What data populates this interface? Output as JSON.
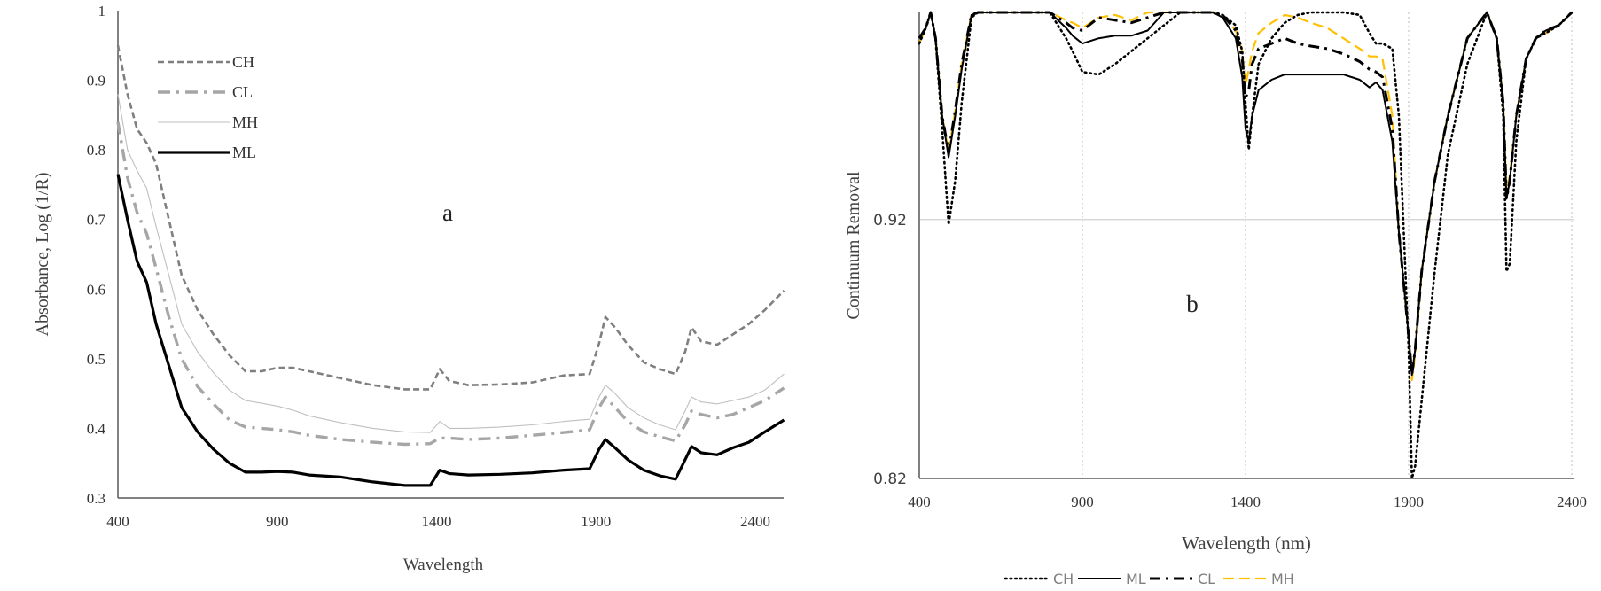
{
  "chart_data": [
    {
      "id": "a",
      "type": "line",
      "panel_label": "a",
      "title": "",
      "xlabel": "Wavelength",
      "ylabel": "Absorbance,  Log (1/R)",
      "xlim": [
        400,
        2490
      ],
      "ylim": [
        0.3,
        1.0
      ],
      "xticks": [
        400,
        900,
        1400,
        1900,
        2400
      ],
      "yticks": [
        0.3,
        0.4,
        0.5,
        0.6,
        0.7,
        0.8,
        0.9,
        1
      ],
      "ytick_labels": [
        "0.3",
        "0.4",
        "0.5",
        "0.6",
        "0.7",
        "0.8",
        "0.9",
        "1"
      ],
      "grid": false,
      "legend_position": "upper-left-inside",
      "legend": [
        "CH",
        "CL",
        "MH",
        "ML"
      ],
      "series": [
        {
          "name": "CH",
          "style": "dashed",
          "color": "#7f7f7f",
          "x": [
            400,
            430,
            460,
            490,
            520,
            560,
            600,
            650,
            700,
            750,
            800,
            850,
            900,
            950,
            1000,
            1100,
            1200,
            1300,
            1380,
            1410,
            1440,
            1500,
            1600,
            1700,
            1800,
            1880,
            1910,
            1930,
            1960,
            2000,
            2050,
            2100,
            2150,
            2180,
            2200,
            2230,
            2280,
            2330,
            2380,
            2430,
            2490
          ],
          "y": [
            0.95,
            0.88,
            0.83,
            0.81,
            0.78,
            0.7,
            0.62,
            0.57,
            0.535,
            0.505,
            0.482,
            0.482,
            0.487,
            0.487,
            0.482,
            0.472,
            0.462,
            0.456,
            0.456,
            0.485,
            0.468,
            0.462,
            0.463,
            0.466,
            0.476,
            0.478,
            0.522,
            0.56,
            0.545,
            0.52,
            0.495,
            0.485,
            0.478,
            0.51,
            0.545,
            0.525,
            0.52,
            0.535,
            0.55,
            0.57,
            0.598
          ]
        },
        {
          "name": "CL",
          "style": "dashdot",
          "color": "#a6a6a6",
          "x": [
            400,
            430,
            460,
            490,
            520,
            560,
            600,
            650,
            700,
            750,
            800,
            850,
            900,
            950,
            1000,
            1100,
            1200,
            1300,
            1380,
            1410,
            1440,
            1500,
            1600,
            1700,
            1800,
            1880,
            1910,
            1930,
            1960,
            2000,
            2050,
            2100,
            2150,
            2180,
            2200,
            2230,
            2280,
            2330,
            2380,
            2430,
            2490
          ],
          "y": [
            0.84,
            0.76,
            0.71,
            0.68,
            0.63,
            0.56,
            0.5,
            0.46,
            0.435,
            0.412,
            0.402,
            0.4,
            0.398,
            0.395,
            0.39,
            0.384,
            0.38,
            0.377,
            0.378,
            0.386,
            0.386,
            0.384,
            0.386,
            0.39,
            0.394,
            0.398,
            0.43,
            0.445,
            0.43,
            0.41,
            0.395,
            0.388,
            0.382,
            0.405,
            0.425,
            0.42,
            0.415,
            0.42,
            0.43,
            0.44,
            0.458
          ]
        },
        {
          "name": "MH",
          "style": "thin",
          "color": "#bfbfbf",
          "x": [
            400,
            430,
            460,
            490,
            520,
            560,
            600,
            650,
            700,
            750,
            800,
            850,
            900,
            950,
            1000,
            1100,
            1200,
            1300,
            1380,
            1410,
            1440,
            1500,
            1600,
            1700,
            1800,
            1880,
            1910,
            1930,
            1960,
            2000,
            2050,
            2100,
            2150,
            2180,
            2200,
            2230,
            2280,
            2330,
            2380,
            2430,
            2490
          ],
          "y": [
            0.88,
            0.8,
            0.77,
            0.745,
            0.69,
            0.62,
            0.55,
            0.51,
            0.48,
            0.455,
            0.44,
            0.436,
            0.432,
            0.426,
            0.418,
            0.408,
            0.4,
            0.395,
            0.394,
            0.41,
            0.4,
            0.4,
            0.402,
            0.405,
            0.41,
            0.413,
            0.445,
            0.462,
            0.45,
            0.43,
            0.415,
            0.405,
            0.398,
            0.425,
            0.445,
            0.438,
            0.435,
            0.44,
            0.445,
            0.455,
            0.478
          ]
        },
        {
          "name": "ML",
          "style": "solid-thick",
          "color": "#000000",
          "x": [
            400,
            430,
            460,
            490,
            520,
            560,
            600,
            650,
            700,
            750,
            800,
            850,
            900,
            950,
            1000,
            1100,
            1200,
            1300,
            1380,
            1410,
            1440,
            1500,
            1600,
            1700,
            1800,
            1880,
            1910,
            1930,
            1960,
            2000,
            2050,
            2100,
            2150,
            2180,
            2200,
            2230,
            2280,
            2330,
            2380,
            2430,
            2490
          ],
          "y": [
            0.765,
            0.7,
            0.64,
            0.61,
            0.55,
            0.49,
            0.43,
            0.395,
            0.37,
            0.35,
            0.337,
            0.337,
            0.338,
            0.337,
            0.333,
            0.33,
            0.323,
            0.318,
            0.318,
            0.34,
            0.335,
            0.333,
            0.334,
            0.336,
            0.34,
            0.342,
            0.37,
            0.384,
            0.372,
            0.355,
            0.34,
            0.332,
            0.327,
            0.355,
            0.374,
            0.365,
            0.362,
            0.372,
            0.38,
            0.395,
            0.412
          ]
        }
      ]
    },
    {
      "id": "b",
      "type": "line",
      "panel_label": "b",
      "title": "",
      "xlabel": "Wavelength (nm)",
      "ylabel": "Continuum Removal",
      "xlim": [
        400,
        2400
      ],
      "ylim": [
        0.82,
        1.0
      ],
      "xticks": [
        400,
        900,
        1400,
        1900,
        2400
      ],
      "yticks": [
        0.82,
        0.92
      ],
      "ytick_labels": [
        "0.82",
        "0.92"
      ],
      "grid": true,
      "grid_note": "horizontal gridline at 0.92; dotted vertical gridlines at 900, 1400, 1900, 2400",
      "legend_position": "bottom",
      "legend": [
        "CH",
        "ML",
        "CL",
        "MH"
      ],
      "series": [
        {
          "name": "CH",
          "style": "dotted",
          "color": "#000000",
          "x": [
            400,
            420,
            435,
            450,
            470,
            490,
            510,
            530,
            560,
            580,
            700,
            800,
            850,
            870,
            900,
            950,
            1000,
            1050,
            1100,
            1150,
            1200,
            1250,
            1300,
            1330,
            1370,
            1390,
            1400,
            1410,
            1420,
            1440,
            1480,
            1520,
            1560,
            1600,
            1650,
            1700,
            1750,
            1780,
            1800,
            1820,
            1850,
            1870,
            1900,
            1910,
            1920,
            1940,
            1980,
            2020,
            2080,
            2140,
            2170,
            2190,
            2200,
            2210,
            2230,
            2260,
            2290,
            2320,
            2360,
            2400
          ],
          "y": [
            0.988,
            0.994,
            1.0,
            0.99,
            0.955,
            0.918,
            0.935,
            0.965,
            0.998,
            1.0,
            1.0,
            1.0,
            0.99,
            0.985,
            0.977,
            0.976,
            0.98,
            0.985,
            0.99,
            0.995,
            1.0,
            1.0,
            1.0,
            0.999,
            0.995,
            0.985,
            0.965,
            0.947,
            0.96,
            0.98,
            0.99,
            0.996,
            0.999,
            1.0,
            1.0,
            1.0,
            0.999,
            0.992,
            0.988,
            0.988,
            0.986,
            0.96,
            0.87,
            0.82,
            0.825,
            0.85,
            0.9,
            0.945,
            0.98,
            1.0,
            0.99,
            0.96,
            0.9,
            0.903,
            0.95,
            0.982,
            0.99,
            0.992,
            0.995,
            1.0
          ]
        },
        {
          "name": "ML",
          "style": "solid",
          "color": "#000000",
          "x": [
            400,
            420,
            435,
            450,
            470,
            490,
            510,
            530,
            560,
            580,
            700,
            800,
            850,
            870,
            900,
            950,
            1000,
            1050,
            1100,
            1150,
            1200,
            1250,
            1300,
            1330,
            1370,
            1390,
            1400,
            1410,
            1420,
            1440,
            1480,
            1520,
            1560,
            1600,
            1650,
            1700,
            1750,
            1780,
            1800,
            1820,
            1850,
            1870,
            1900,
            1910,
            1920,
            1940,
            1980,
            2020,
            2080,
            2140,
            2170,
            2190,
            2200,
            2210,
            2230,
            2260,
            2290,
            2320,
            2360,
            2400
          ],
          "y": [
            0.99,
            0.994,
            1.0,
            0.99,
            0.96,
            0.944,
            0.96,
            0.978,
            0.999,
            1.0,
            1.0,
            1.0,
            0.994,
            0.991,
            0.988,
            0.99,
            0.991,
            0.991,
            0.993,
            1.0,
            1.0,
            1.0,
            1.0,
            0.998,
            0.99,
            0.975,
            0.955,
            0.95,
            0.96,
            0.97,
            0.974,
            0.976,
            0.976,
            0.976,
            0.976,
            0.976,
            0.974,
            0.971,
            0.973,
            0.97,
            0.95,
            0.915,
            0.875,
            0.86,
            0.87,
            0.9,
            0.935,
            0.96,
            0.99,
            1.0,
            0.99,
            0.965,
            0.928,
            0.935,
            0.96,
            0.982,
            0.99,
            0.993,
            0.995,
            1.0
          ]
        },
        {
          "name": "CL",
          "style": "dashdot",
          "color": "#000000",
          "x": [
            400,
            420,
            435,
            450,
            470,
            490,
            510,
            530,
            560,
            580,
            700,
            800,
            850,
            870,
            900,
            950,
            1000,
            1050,
            1100,
            1150,
            1200,
            1250,
            1300,
            1330,
            1370,
            1390,
            1400,
            1410,
            1420,
            1440,
            1480,
            1520,
            1560,
            1600,
            1650,
            1700,
            1750,
            1780,
            1800,
            1820,
            1850,
            1870,
            1900,
            1910,
            1920,
            1940,
            1980,
            2020,
            2080,
            2140,
            2170,
            2190,
            2200,
            2210,
            2230,
            2260,
            2290,
            2320,
            2360,
            2400
          ],
          "y": [
            0.99,
            0.994,
            1.0,
            0.99,
            0.96,
            0.946,
            0.962,
            0.98,
            0.999,
            1.0,
            1.0,
            1.0,
            0.996,
            0.994,
            0.993,
            0.998,
            0.997,
            0.996,
            0.998,
            1.0,
            1.0,
            1.0,
            1.0,
            0.999,
            0.993,
            0.982,
            0.967,
            0.97,
            0.98,
            0.986,
            0.988,
            0.99,
            0.988,
            0.987,
            0.986,
            0.984,
            0.981,
            0.978,
            0.977,
            0.975,
            0.955,
            0.915,
            0.875,
            0.86,
            0.87,
            0.9,
            0.935,
            0.96,
            0.99,
            1.0,
            0.99,
            0.965,
            0.928,
            0.935,
            0.96,
            0.982,
            0.99,
            0.993,
            0.995,
            1.0
          ]
        },
        {
          "name": "MH",
          "style": "dashed",
          "color": "#ffc000",
          "x": [
            400,
            420,
            435,
            450,
            470,
            490,
            510,
            530,
            560,
            580,
            700,
            800,
            850,
            870,
            900,
            950,
            1000,
            1050,
            1100,
            1150,
            1200,
            1250,
            1300,
            1330,
            1370,
            1390,
            1400,
            1410,
            1420,
            1440,
            1480,
            1520,
            1560,
            1600,
            1650,
            1700,
            1750,
            1780,
            1800,
            1820,
            1850,
            1870,
            1900,
            1910,
            1920,
            1940,
            1980,
            2020,
            2080,
            2140,
            2170,
            2190,
            2200,
            2210,
            2230,
            2260,
            2290,
            2320,
            2360,
            2400
          ],
          "y": [
            0.988,
            0.994,
            1.0,
            0.99,
            0.96,
            0.946,
            0.962,
            0.98,
            0.999,
            1.0,
            1.0,
            1.0,
            0.997,
            0.996,
            0.994,
            0.998,
            0.999,
            0.997,
            1.0,
            1.0,
            1.0,
            1.0,
            1.0,
            0.999,
            0.993,
            0.985,
            0.972,
            0.978,
            0.985,
            0.992,
            0.996,
            0.999,
            0.998,
            0.996,
            0.994,
            0.99,
            0.986,
            0.983,
            0.983,
            0.982,
            0.96,
            0.915,
            0.875,
            0.858,
            0.868,
            0.9,
            0.935,
            0.96,
            0.99,
            1.0,
            0.99,
            0.965,
            0.93,
            0.937,
            0.96,
            0.982,
            0.99,
            0.992,
            0.995,
            1.0
          ]
        }
      ]
    }
  ]
}
